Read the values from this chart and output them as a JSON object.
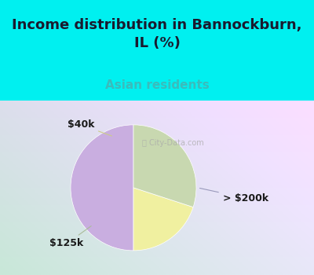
{
  "title": "Income distribution in Bannockburn,\nIL (%)",
  "subtitle": "Asian residents",
  "slices": [
    {
      "label": "> $200k",
      "value": 50,
      "color": "#c9aee0"
    },
    {
      "label": "$40k",
      "value": 20,
      "color": "#f0f0a0"
    },
    {
      "label": "$125k",
      "value": 30,
      "color": "#c8d8b0"
    }
  ],
  "startangle": 90,
  "bg_color_cyan": "#00f0f0",
  "title_color": "#1a1a2e",
  "subtitle_color": "#3abcbc",
  "label_color": "#1a1a1a",
  "watermark": "City-Data.com",
  "title_fontsize": 13,
  "subtitle_fontsize": 11,
  "label_fontsize": 9,
  "chart_bg_left": "#c8e8d8",
  "chart_bg_right": "#e8e8f0"
}
